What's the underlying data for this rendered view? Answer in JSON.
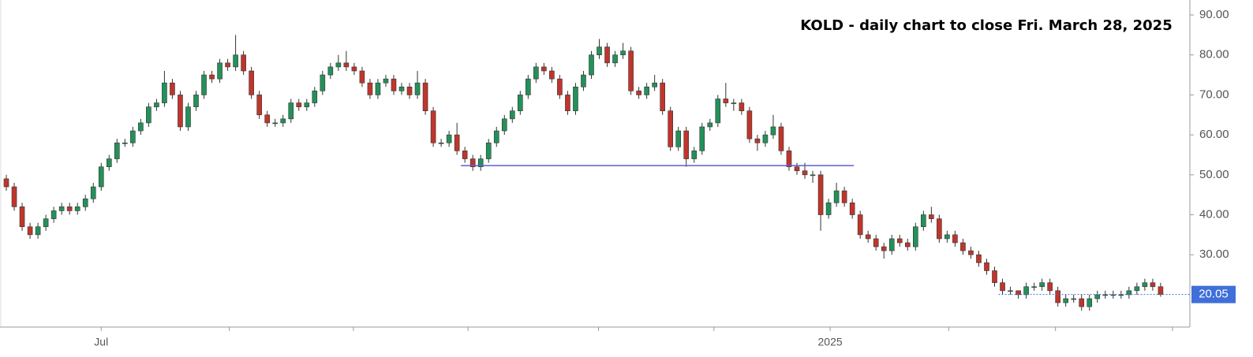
{
  "chart_data": {
    "type": "candlestick",
    "title": "KOLD - daily chart to close Fri. March 28, 2025",
    "colors": {
      "up": "#23915a",
      "down": "#c0352b",
      "wick": "#333333"
    },
    "open": [
      49,
      47,
      42,
      37,
      35,
      37,
      39,
      41,
      42,
      41,
      42,
      44,
      47,
      52,
      54,
      58,
      58,
      61,
      63,
      67,
      68,
      73,
      70,
      62,
      67,
      70,
      75,
      74,
      78,
      77,
      80,
      76,
      70,
      65,
      63,
      63,
      64,
      68,
      67,
      68,
      71,
      75,
      77,
      78,
      77,
      76,
      73,
      70,
      73,
      74,
      71,
      72,
      70,
      73,
      66,
      58,
      58,
      60,
      56,
      54,
      52,
      54,
      58,
      61,
      64,
      66,
      70,
      74,
      77,
      76,
      74,
      70,
      66,
      72,
      75,
      80,
      82,
      78,
      80,
      81,
      71,
      70,
      72,
      73,
      66,
      57,
      61,
      54,
      56,
      62,
      63,
      69,
      68,
      68,
      66,
      59,
      58,
      60,
      62,
      56,
      52,
      51,
      50,
      50,
      40,
      43,
      46,
      43,
      40,
      35,
      34,
      32,
      31,
      34,
      33,
      32,
      37,
      40,
      39,
      34,
      35,
      33,
      31,
      30,
      28,
      26,
      23,
      21,
      21,
      20,
      22,
      22,
      23,
      21,
      18,
      19,
      19,
      17,
      19,
      20,
      20,
      20,
      20,
      21,
      22,
      23,
      22
    ],
    "high": [
      50,
      48,
      43,
      38,
      38,
      40,
      42,
      43,
      43,
      43,
      45,
      48,
      53,
      55,
      59,
      59,
      62,
      64,
      68,
      69,
      76,
      74,
      71,
      68,
      71,
      76,
      76,
      79,
      79,
      85,
      81,
      77,
      71,
      66,
      64,
      65,
      69,
      69,
      69,
      72,
      76,
      78,
      80,
      81,
      78,
      77,
      74,
      74,
      75,
      75,
      73,
      73,
      76,
      74,
      67,
      59,
      61,
      63,
      57,
      55,
      55,
      59,
      62,
      65,
      67,
      71,
      75,
      78,
      78,
      77,
      75,
      71,
      73,
      76,
      81,
      84,
      83,
      81,
      83,
      82,
      72,
      73,
      75,
      74,
      67,
      62,
      62,
      57,
      63,
      64,
      70,
      73,
      69,
      69,
      67,
      60,
      61,
      65,
      63,
      57,
      53,
      53,
      51,
      51,
      44,
      48,
      47,
      44,
      41,
      36,
      35,
      33,
      35,
      35,
      34,
      38,
      41,
      42,
      40,
      36,
      36,
      34,
      32,
      31,
      29,
      27,
      24,
      22,
      21,
      23,
      23,
      24,
      24,
      22,
      20,
      20,
      20,
      20,
      21,
      21,
      21,
      21,
      22,
      23,
      24,
      24,
      23
    ],
    "low": [
      46,
      41,
      36,
      34,
      34,
      36,
      38,
      40,
      40,
      40,
      41,
      43,
      46,
      51,
      53,
      57,
      57,
      60,
      62,
      66,
      67,
      69,
      61,
      61,
      66,
      69,
      73,
      73,
      76,
      76,
      75,
      69,
      64,
      62,
      62,
      62,
      63,
      66,
      66,
      67,
      70,
      74,
      76,
      76,
      75,
      72,
      69,
      69,
      72,
      70,
      70,
      69,
      69,
      65,
      57,
      57,
      57,
      55,
      53,
      51,
      51,
      53,
      57,
      60,
      63,
      65,
      69,
      73,
      75,
      73,
      69,
      65,
      65,
      71,
      74,
      79,
      77,
      77,
      79,
      70,
      69,
      69,
      71,
      65,
      56,
      56,
      52,
      53,
      55,
      61,
      62,
      67,
      66,
      65,
      58,
      56,
      57,
      59,
      55,
      51,
      50,
      49,
      48,
      36,
      39,
      42,
      42,
      39,
      34,
      33,
      31,
      29,
      30,
      32,
      31,
      31,
      36,
      38,
      33,
      33,
      32,
      30,
      29,
      27,
      25,
      22,
      20,
      20,
      19,
      19,
      21,
      21,
      20,
      17,
      17,
      18,
      16,
      16,
      18,
      19,
      19,
      19,
      19,
      20,
      21,
      21,
      19.5
    ],
    "close": [
      47,
      42,
      37,
      35,
      37,
      39,
      41,
      42,
      41,
      42,
      44,
      47,
      52,
      54,
      58,
      58,
      61,
      63,
      67,
      68,
      73,
      70,
      62,
      67,
      70,
      75,
      74,
      78,
      77,
      80,
      76,
      70,
      65,
      63,
      63,
      64,
      68,
      67,
      68,
      71,
      75,
      77,
      78,
      77,
      76,
      73,
      70,
      73,
      74,
      71,
      72,
      70,
      73,
      66,
      58,
      58,
      60,
      56,
      54,
      52,
      54,
      58,
      61,
      64,
      66,
      70,
      74,
      77,
      76,
      74,
      70,
      66,
      72,
      75,
      80,
      82,
      78,
      80,
      81,
      71,
      70,
      72,
      73,
      66,
      57,
      61,
      54,
      56,
      62,
      63,
      69,
      68,
      68,
      66,
      59,
      58,
      60,
      62,
      56,
      52,
      51,
      50,
      50,
      40,
      43,
      46,
      43,
      40,
      35,
      34,
      32,
      31,
      34,
      33,
      32,
      37,
      40,
      39,
      34,
      35,
      33,
      31,
      30,
      28,
      26,
      23,
      21,
      21,
      20,
      22,
      22,
      23,
      21,
      18,
      19,
      19,
      17,
      19,
      20,
      20,
      20,
      20,
      21,
      22,
      23,
      22,
      20.05
    ],
    "xlim": [
      -0.8,
      149.7
    ],
    "xticks": [
      {
        "value": 12,
        "label": "Jul"
      },
      {
        "value": 28.2,
        "label": null
      },
      {
        "value": 43.9,
        "label": null
      },
      {
        "value": 58.4,
        "label": null
      },
      {
        "value": 74.9,
        "label": null
      },
      {
        "value": 89.5,
        "label": null
      },
      {
        "value": 104.2,
        "label": "2025"
      },
      {
        "value": 119.2,
        "label": null
      },
      {
        "value": 132.7,
        "label": null
      },
      {
        "value": 147.5,
        "label": null
      }
    ],
    "ylim": [
      11.9,
      93.75
    ],
    "yticks": [
      {
        "value": 30,
        "label": "30.00"
      },
      {
        "value": 40,
        "label": "40.00"
      },
      {
        "value": 50,
        "label": "50.00"
      },
      {
        "value": 60,
        "label": "60.00"
      },
      {
        "value": 70,
        "label": "70.00"
      },
      {
        "value": 80,
        "label": "80.00"
      },
      {
        "value": 90,
        "label": "90.00"
      }
    ],
    "support_line": {
      "y": 52.3,
      "x": [
        57.5,
        107.2
      ],
      "color": "#5b5fd6"
    },
    "last_price_line": {
      "x": [
        125.5,
        149.7
      ],
      "color": "#3f6fd8"
    }
  }
}
